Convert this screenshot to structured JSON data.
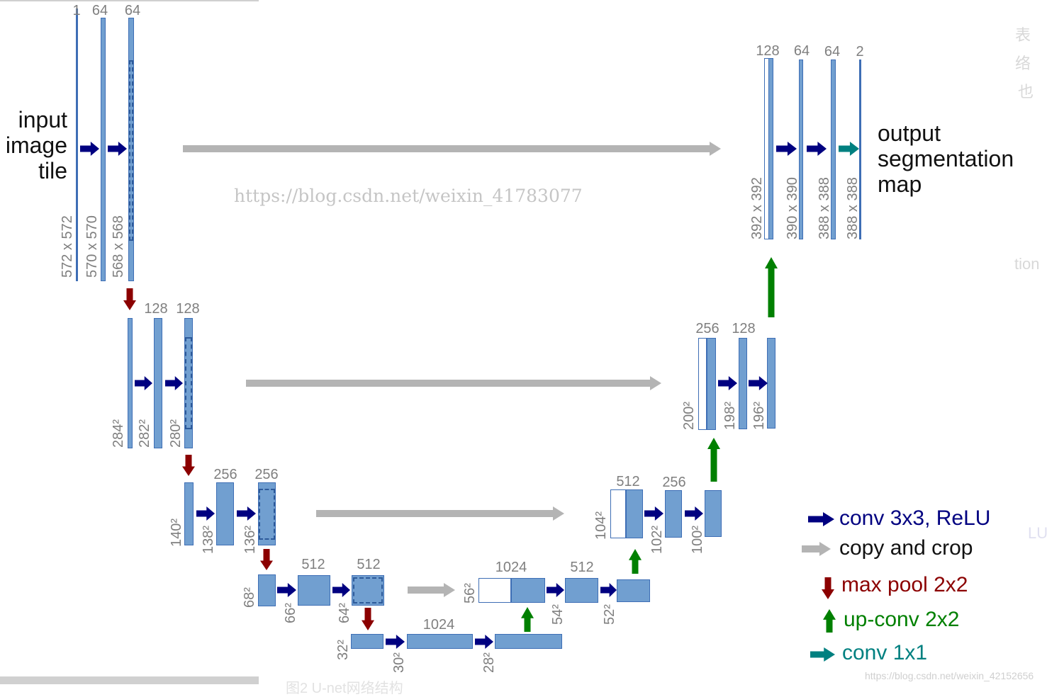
{
  "input_label": [
    "input",
    "image",
    "tile"
  ],
  "output_label": [
    "output",
    "segmentation",
    "map"
  ],
  "channel_labels": [
    "1",
    "64",
    "64",
    "128",
    "128",
    "256",
    "256",
    "512",
    "512",
    "1024",
    "1024",
    "512",
    "512",
    "256",
    "256",
    "128",
    "128",
    "64",
    "64",
    "2"
  ],
  "size_labels": [
    "572 x 572",
    "570 x 570",
    "568 x 568",
    "284²",
    "282²",
    "280²",
    "140²",
    "138²",
    "136²",
    "68²",
    "66²",
    "64²",
    "32²",
    "30²",
    "28²",
    "56²",
    "54²",
    "52²",
    "104²",
    "102²",
    "100²",
    "200²",
    "198²",
    "196²",
    "392 x 392",
    "390 x 390",
    "388 x 388",
    "388 x 388"
  ],
  "legend": [
    {
      "label": "conv 3x3, ReLU",
      "color": "#000080",
      "icon": "arrow-right-icon"
    },
    {
      "label": "copy and crop",
      "color": "#111111",
      "icon": "gray-arrow-right-icon"
    },
    {
      "label": "max pool 2x2",
      "color": "#8b0000",
      "icon": "arrow-down-icon"
    },
    {
      "label": "up-conv 2x2",
      "color": "#008000",
      "icon": "arrow-up-icon"
    },
    {
      "label": "conv 1x1",
      "color": "#008080",
      "icon": "teal-arrow-right-icon"
    }
  ],
  "colors": {
    "conv": "#000080",
    "copy": "#b4b4b4",
    "pool": "#8b0000",
    "upconv": "#008000",
    "conv1x1": "#008080",
    "feature_map": "#719fd0"
  },
  "watermarks": [
    "https://blog.csdn.net/weixin_41783077",
    "https://blog.csdn.net/weixin_42152656"
  ],
  "edge_fragments": [
    "表",
    "络",
    "也",
    "tion",
    "LU"
  ],
  "caption_fragment": "图2 U-net网络结构"
}
